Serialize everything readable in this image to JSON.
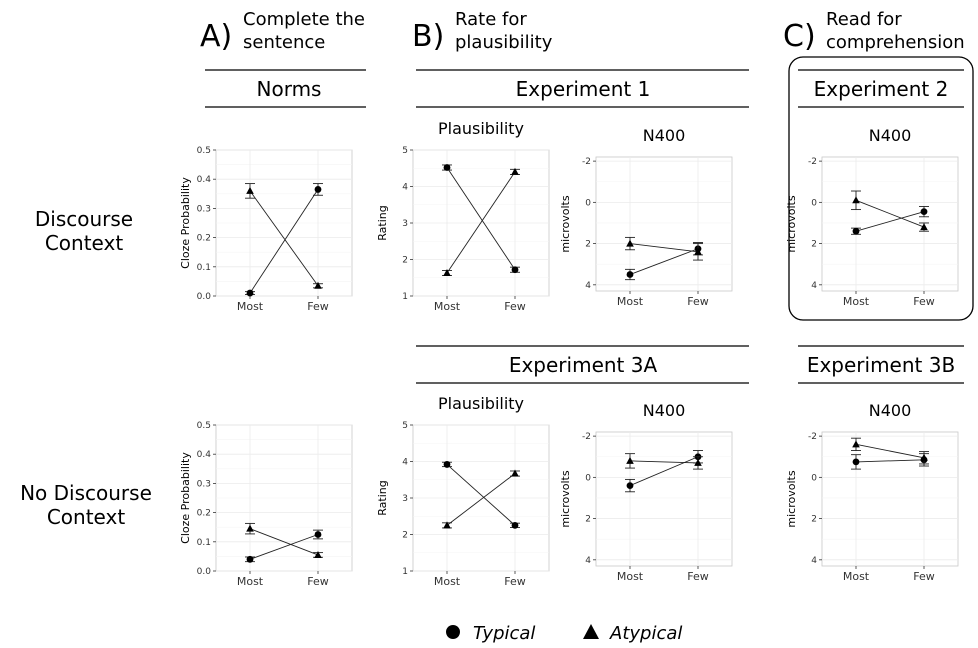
{
  "sections": [
    {
      "letter": "A)",
      "line1": "Complete the",
      "line2": "sentence"
    },
    {
      "letter": "B)",
      "line1": "Rate for",
      "line2": "plausibility"
    },
    {
      "letter": "C)",
      "line1": "Read for",
      "line2": "comprehension"
    }
  ],
  "strips": {
    "norms": "Norms",
    "exp1": "Experiment 1",
    "exp2": "Experiment 2",
    "exp3a": "Experiment 3A",
    "exp3b": "Experiment 3B"
  },
  "row_labels": [
    {
      "line1": "Discourse",
      "line2": "Context"
    },
    {
      "line1": "No Discourse",
      "line2": "Context"
    }
  ],
  "legend": {
    "typical": "Typical",
    "atypical": "Atypical"
  },
  "chart_data": [
    {
      "id": "norms-discourse",
      "type": "line",
      "title": "",
      "ylabel": "Cloze Probability",
      "categories": [
        "Most",
        "Few"
      ],
      "ylim": [
        0,
        0.5
      ],
      "yticks": [
        "0.0",
        "0.1",
        "0.2",
        "0.3",
        "0.4",
        "0.5"
      ],
      "reversed": false,
      "series": [
        {
          "name": "Typical",
          "marker": "circle",
          "values": [
            0.01,
            0.365
          ],
          "err": [
            0.005,
            0.02
          ]
        },
        {
          "name": "Atypical",
          "marker": "triangle",
          "values": [
            0.36,
            0.035
          ],
          "err": [
            0.025,
            0.007
          ]
        }
      ]
    },
    {
      "id": "exp1-plausibility",
      "type": "line",
      "title": "Plausibility",
      "ylabel": "Rating",
      "categories": [
        "Most",
        "Few"
      ],
      "ylim": [
        1,
        5
      ],
      "yticks": [
        "1",
        "2",
        "3",
        "4",
        "5"
      ],
      "reversed": false,
      "series": [
        {
          "name": "Typical",
          "marker": "circle",
          "values": [
            4.52,
            1.72
          ],
          "err": [
            0.07,
            0.07
          ]
        },
        {
          "name": "Atypical",
          "marker": "triangle",
          "values": [
            1.63,
            4.4
          ],
          "err": [
            0.07,
            0.07
          ]
        }
      ]
    },
    {
      "id": "exp1-n400",
      "type": "line",
      "title": "N400",
      "ylabel": "microvolts",
      "categories": [
        "Most",
        "Few"
      ],
      "ylim": [
        -2.2,
        4.3
      ],
      "yticks": [
        "-2",
        "0",
        "2",
        "4"
      ],
      "reversed": true,
      "series": [
        {
          "name": "Typical",
          "marker": "circle",
          "values": [
            3.5,
            2.25
          ],
          "err": [
            0.25,
            0.3
          ]
        },
        {
          "name": "Atypical",
          "marker": "triangle",
          "values": [
            2.0,
            2.4
          ],
          "err": [
            0.3,
            0.4
          ]
        }
      ]
    },
    {
      "id": "exp2-n400",
      "type": "line",
      "title": "N400",
      "ylabel": "microvolts",
      "categories": [
        "Most",
        "Few"
      ],
      "ylim": [
        -2.2,
        4.3
      ],
      "yticks": [
        "-2",
        "0",
        "2",
        "4"
      ],
      "reversed": true,
      "series": [
        {
          "name": "Typical",
          "marker": "circle",
          "values": [
            1.4,
            0.45
          ],
          "err": [
            0.15,
            0.25
          ]
        },
        {
          "name": "Atypical",
          "marker": "triangle",
          "values": [
            -0.1,
            1.2
          ],
          "err": [
            0.45,
            0.2
          ]
        }
      ]
    },
    {
      "id": "norms-nodiscourse",
      "type": "line",
      "title": "",
      "ylabel": "Cloze Probability",
      "categories": [
        "Most",
        "Few"
      ],
      "ylim": [
        0,
        0.5
      ],
      "yticks": [
        "0.0",
        "0.1",
        "0.2",
        "0.3",
        "0.4",
        "0.5"
      ],
      "reversed": false,
      "series": [
        {
          "name": "Typical",
          "marker": "circle",
          "values": [
            0.04,
            0.125
          ],
          "err": [
            0.008,
            0.015
          ]
        },
        {
          "name": "Atypical",
          "marker": "triangle",
          "values": [
            0.145,
            0.055
          ],
          "err": [
            0.018,
            0.008
          ]
        }
      ]
    },
    {
      "id": "exp3a-plausibility",
      "type": "line",
      "title": "Plausibility",
      "ylabel": "Rating",
      "categories": [
        "Most",
        "Few"
      ],
      "ylim": [
        1,
        5
      ],
      "yticks": [
        "1",
        "2",
        "3",
        "4",
        "5"
      ],
      "reversed": false,
      "series": [
        {
          "name": "Typical",
          "marker": "circle",
          "values": [
            3.92,
            2.25
          ],
          "err": [
            0.06,
            0.06
          ]
        },
        {
          "name": "Atypical",
          "marker": "triangle",
          "values": [
            2.25,
            3.67
          ],
          "err": [
            0.07,
            0.07
          ]
        }
      ]
    },
    {
      "id": "exp3a-n400",
      "type": "line",
      "title": "N400",
      "ylabel": "microvolts",
      "categories": [
        "Most",
        "Few"
      ],
      "ylim": [
        -2.2,
        4.3
      ],
      "yticks": [
        "-2",
        "0",
        "2",
        "4"
      ],
      "reversed": true,
      "series": [
        {
          "name": "Typical",
          "marker": "circle",
          "values": [
            0.4,
            -1.0
          ],
          "err": [
            0.3,
            0.3
          ]
        },
        {
          "name": "Atypical",
          "marker": "triangle",
          "values": [
            -0.8,
            -0.7
          ],
          "err": [
            0.35,
            0.3
          ]
        }
      ]
    },
    {
      "id": "exp3b-n400",
      "type": "line",
      "title": "N400",
      "ylabel": "microvolts",
      "categories": [
        "Most",
        "Few"
      ],
      "ylim": [
        -2.2,
        4.3
      ],
      "yticks": [
        "-2",
        "0",
        "2",
        "4"
      ],
      "reversed": true,
      "series": [
        {
          "name": "Typical",
          "marker": "circle",
          "values": [
            -0.75,
            -0.85
          ],
          "err": [
            0.35,
            0.3
          ]
        },
        {
          "name": "Atypical",
          "marker": "triangle",
          "values": [
            -1.6,
            -0.95
          ],
          "err": [
            0.3,
            0.3
          ]
        }
      ]
    }
  ]
}
